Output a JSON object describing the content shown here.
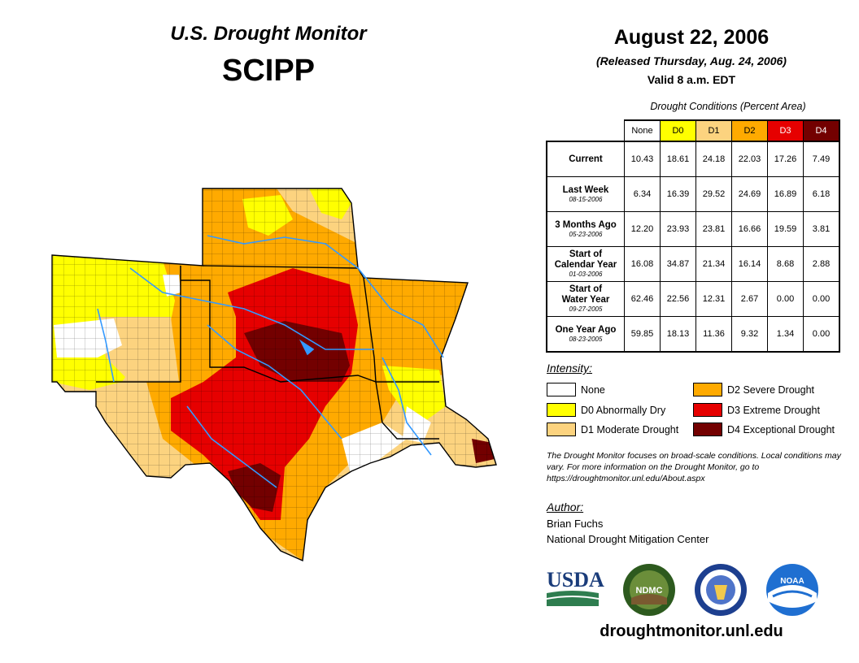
{
  "header": {
    "title": "U.S. Drought Monitor",
    "region": "SCIPP"
  },
  "date_block": {
    "date": "August 22, 2006",
    "released": "(Released Thursday, Aug. 24, 2006)",
    "valid": "Valid 8 a.m. EDT"
  },
  "table": {
    "caption": "Drought Conditions (Percent Area)",
    "columns": [
      "None",
      "D0",
      "D1",
      "D2",
      "D3",
      "D4"
    ],
    "column_colors": [
      "#ffffff",
      "#ffff00",
      "#fcd37f",
      "#ffaa00",
      "#e60000",
      "#730000"
    ],
    "rows": [
      {
        "label": "Current",
        "date": "",
        "values": [
          "10.43",
          "18.61",
          "24.18",
          "22.03",
          "17.26",
          "7.49"
        ]
      },
      {
        "label": "Last Week",
        "date": "08-15-2006",
        "values": [
          "6.34",
          "16.39",
          "29.52",
          "24.69",
          "16.89",
          "6.18"
        ]
      },
      {
        "label": "3 Months Ago",
        "date": "05-23-2006",
        "values": [
          "12.20",
          "23.93",
          "23.81",
          "16.66",
          "19.59",
          "3.81"
        ]
      },
      {
        "label": "Start of\nCalendar Year",
        "date": "01-03-2006",
        "values": [
          "16.08",
          "34.87",
          "21.34",
          "16.14",
          "8.68",
          "2.88"
        ]
      },
      {
        "label": "Start of\nWater Year",
        "date": "09-27-2005",
        "values": [
          "62.46",
          "22.56",
          "12.31",
          "2.67",
          "0.00",
          "0.00"
        ]
      },
      {
        "label": "One Year Ago",
        "date": "08-23-2005",
        "values": [
          "59.85",
          "18.13",
          "11.36",
          "9.32",
          "1.34",
          "0.00"
        ]
      }
    ]
  },
  "legend": {
    "title": "Intensity:",
    "items": [
      {
        "label": "None",
        "color": "#ffffff"
      },
      {
        "label": "D0 Abnormally Dry",
        "color": "#ffff00"
      },
      {
        "label": "D1 Moderate Drought",
        "color": "#fcd37f"
      },
      {
        "label": "D2 Severe Drought",
        "color": "#ffaa00"
      },
      {
        "label": "D3 Extreme Drought",
        "color": "#e60000"
      },
      {
        "label": "D4 Exceptional Drought",
        "color": "#730000"
      }
    ]
  },
  "note": "The Drought Monitor focuses on broad-scale conditions. Local conditions may vary. For more information on the Drought Monitor, go to https://droughtmonitor.unl.edu/About.aspx",
  "author": {
    "title": "Author:",
    "name": "Brian Fuchs",
    "org": "National Drought Mitigation Center"
  },
  "logos": {
    "usda": "USDA",
    "ndmc": "NDMC",
    "noaa": "NOAA"
  },
  "website": "droughtmonitor.unl.edu",
  "colors": {
    "river": "#3399ff",
    "county_line": "#000000",
    "state_line": "#000000"
  }
}
